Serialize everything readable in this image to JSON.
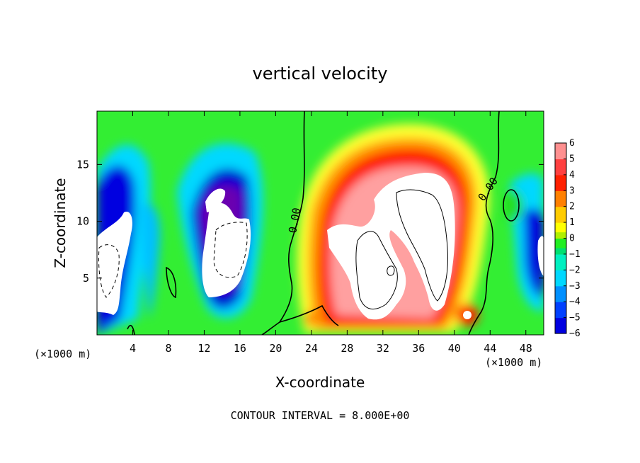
{
  "chart_data": {
    "type": "heatmap",
    "title": "vertical velocity",
    "xlabel": "X-coordinate",
    "ylabel": "Z-coordinate",
    "x_unit_left": "(×1000 m)",
    "x_unit_right": "(×1000 m)",
    "x_ticks": [
      "4",
      "8",
      "12",
      "16",
      "20",
      "24",
      "28",
      "32",
      "36",
      "40",
      "44",
      "48"
    ],
    "y_ticks": [
      "5",
      "10",
      "15"
    ],
    "xlim": [
      0,
      50
    ],
    "ylim": [
      0,
      19.7
    ],
    "colorbar": {
      "ticks": [
        "6",
        "5",
        "4",
        "3",
        "2",
        "1",
        "0",
        "−1",
        "−2",
        "−3",
        "−4",
        "−5",
        "−6"
      ],
      "range": [
        -6,
        6
      ]
    },
    "contour_label": "0.00",
    "contour_interval_text": "CONTOUR INTERVAL = 8.000E+00",
    "colors": {
      "strong_negative": "#7a00a8",
      "negative": "#0000e0",
      "weak_negative": "#00d8ff",
      "zero": "#22ee22",
      "weak_positive": "#ffff00",
      "positive": "#ff2000",
      "strong_positive": "#ff9090",
      "beyond_range": "#ffffff"
    }
  }
}
